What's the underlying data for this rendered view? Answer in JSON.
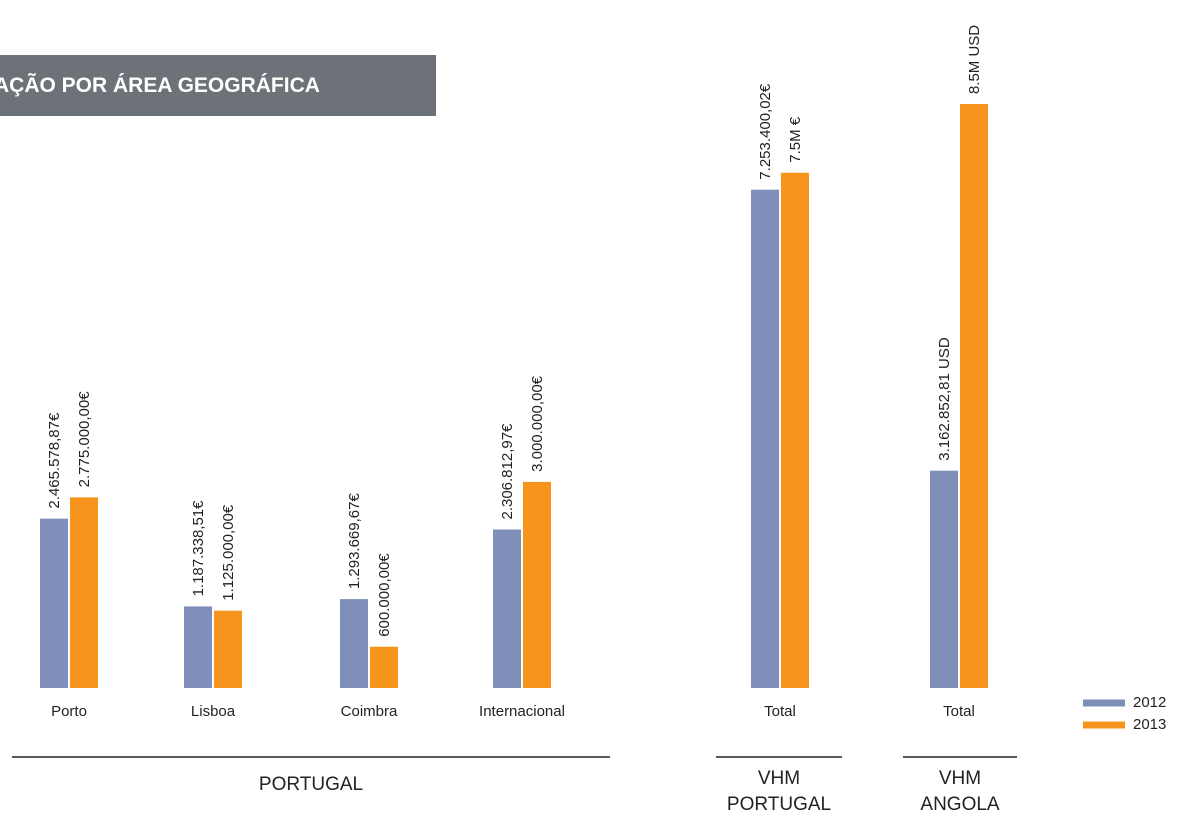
{
  "chart_data": {
    "type": "bar",
    "title": "AÇÃO POR ÁREA GEOGRÁFICA",
    "categories": [
      "Porto",
      "Lisboa",
      "Coimbra",
      "Internacional",
      "Total",
      "Total"
    ],
    "groups": [
      "PORTUGAL",
      "VHM PORTUGAL",
      "VHM ANGOLA"
    ],
    "series": [
      {
        "name": "2012",
        "color": "#7f8fba",
        "values": [
          2465578.87,
          1187338.51,
          1293669.67,
          2306812.97,
          7253400.02,
          3162852.81
        ],
        "value_labels": [
          "2.465.578,87€",
          "1.187.338,51€",
          "1.293.669,67€",
          "2.306.812,97€",
          "7.253.400,02€",
          "3.162.852,81 USD"
        ]
      },
      {
        "name": "2013",
        "color": "#f7941d",
        "values": [
          2775000,
          1125000,
          600000,
          3000000,
          7500000,
          8500000
        ],
        "value_labels": [
          "2.775.000,00€",
          "1.125.000,00€",
          "600.000,00€",
          "3.000.000,00€",
          "7.5M €",
          "8.5M USD"
        ]
      }
    ],
    "ylim": [
      0,
      10000000
    ],
    "legend": "bottom-right"
  }
}
